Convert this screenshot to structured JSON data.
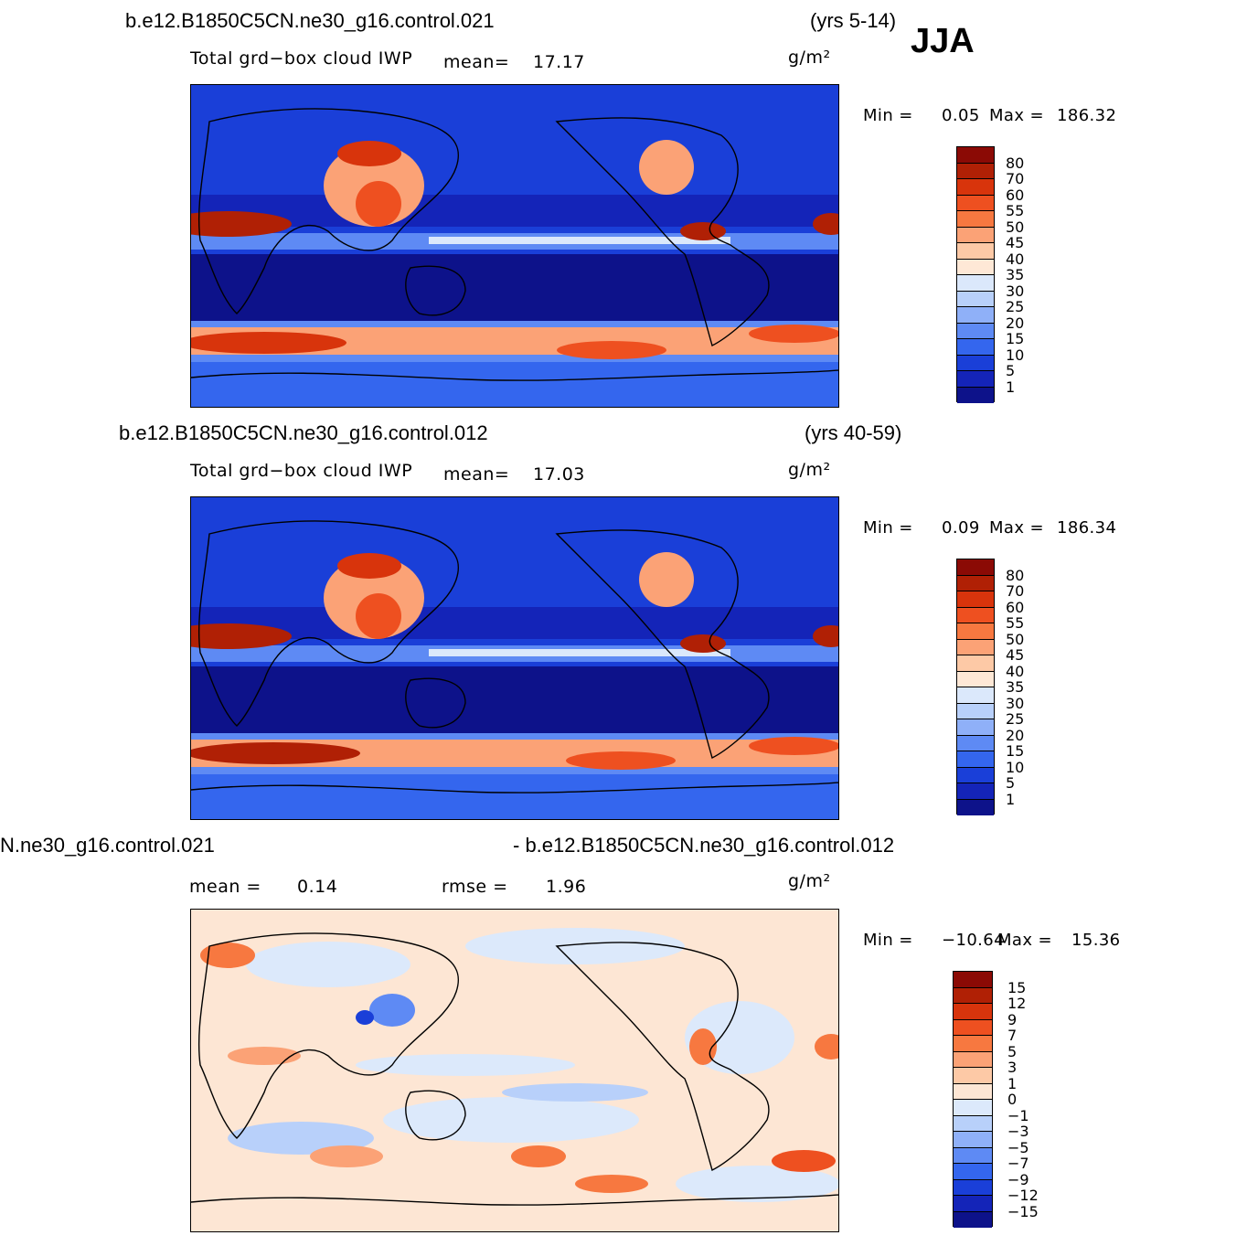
{
  "season": "JJA",
  "panels": [
    {
      "case": "b.e12.B1850C5CN.ne30_g16.control.021",
      "years": "(yrs 5-14)",
      "variable": "Total grd−box cloud IWP",
      "mean_label": "mean=",
      "mean_value": "17.17",
      "units": "g/m²",
      "min_label": "Min  =",
      "min_value": "0.05",
      "max_label": "Max  =",
      "max_value": "186.32",
      "levels": [
        "80",
        "70",
        "60",
        "55",
        "50",
        "45",
        "40",
        "35",
        "30",
        "25",
        "20",
        "15",
        "10",
        "5",
        "1"
      ]
    },
    {
      "case": "b.e12.B1850C5CN.ne30_g16.control.012",
      "years": "(yrs 40-59)",
      "variable": "Total grd−box cloud IWP",
      "mean_label": "mean=",
      "mean_value": "17.03",
      "units": "g/m²",
      "min_label": "Min  =",
      "min_value": "0.09",
      "max_label": "Max  =",
      "max_value": "186.34",
      "levels": [
        "80",
        "70",
        "60",
        "55",
        "50",
        "45",
        "40",
        "35",
        "30",
        "25",
        "20",
        "15",
        "10",
        "5",
        "1"
      ]
    },
    {
      "case_left": "N.ne30_g16.control.021",
      "case_right": "- b.e12.B1850C5CN.ne30_g16.control.012",
      "mean_label": "mean  =",
      "mean_value": "0.14",
      "rmse_label": "rmse  =",
      "rmse_value": "1.96",
      "units": "g/m²",
      "min_label": "Min  =",
      "min_value": "−10.64",
      "max_label": "Max  =",
      "max_value": "15.36",
      "levels": [
        "15",
        "12",
        "9",
        "7",
        "5",
        "3",
        "1",
        "0",
        "−1",
        "−3",
        "−5",
        "−7",
        "−9",
        "−12",
        "−15"
      ]
    }
  ],
  "colors": {
    "abs_scale": [
      "#8b0a05",
      "#b02005",
      "#d8340c",
      "#ee5020",
      "#f77840",
      "#fba276",
      "#fdc9a6",
      "#fee8d6",
      "#dbe8fb",
      "#b8d0fa",
      "#8fb0f8",
      "#5e8af4",
      "#3466ee",
      "#1a3fd8",
      "#1424b8",
      "#0d128a"
    ],
    "diff_scale": [
      "#8b0a05",
      "#b02005",
      "#d8340c",
      "#ee5020",
      "#f77840",
      "#fba276",
      "#fdc9a6",
      "#fde6d4",
      "#dce9fb",
      "#b8d0fa",
      "#8fb0f8",
      "#5e8af4",
      "#3466ee",
      "#1a3fd8",
      "#1424b8",
      "#0d128a"
    ]
  }
}
